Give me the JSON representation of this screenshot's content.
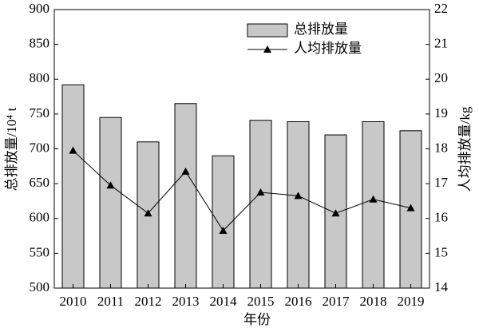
{
  "chart_data": {
    "type": "bar",
    "categories": [
      "2010",
      "2011",
      "2012",
      "2013",
      "2014",
      "2015",
      "2016",
      "2017",
      "2018",
      "2019"
    ],
    "series": [
      {
        "name": "总排放量",
        "type": "bar",
        "color": "#c8c8c8",
        "values": [
          792,
          745,
          710,
          765,
          690,
          741,
          739,
          720,
          739,
          726
        ]
      },
      {
        "name": "人均排放量",
        "type": "line",
        "axis": "y2",
        "color": "#000000",
        "values": [
          17.95,
          16.95,
          16.15,
          17.35,
          15.65,
          16.75,
          16.65,
          16.15,
          16.55,
          16.3
        ]
      }
    ],
    "x_label": "年份",
    "y_label": "总排放量/10⁴ t",
    "y2_label": "人均排放量/kg",
    "ylim": [
      500,
      900
    ],
    "yticks": [
      500,
      550,
      600,
      650,
      700,
      750,
      800,
      850,
      900
    ],
    "y2lim": [
      14,
      22
    ],
    "y2ticks": [
      14,
      15,
      16,
      17,
      18,
      19,
      20,
      21,
      22
    ],
    "legend": "top-right"
  }
}
